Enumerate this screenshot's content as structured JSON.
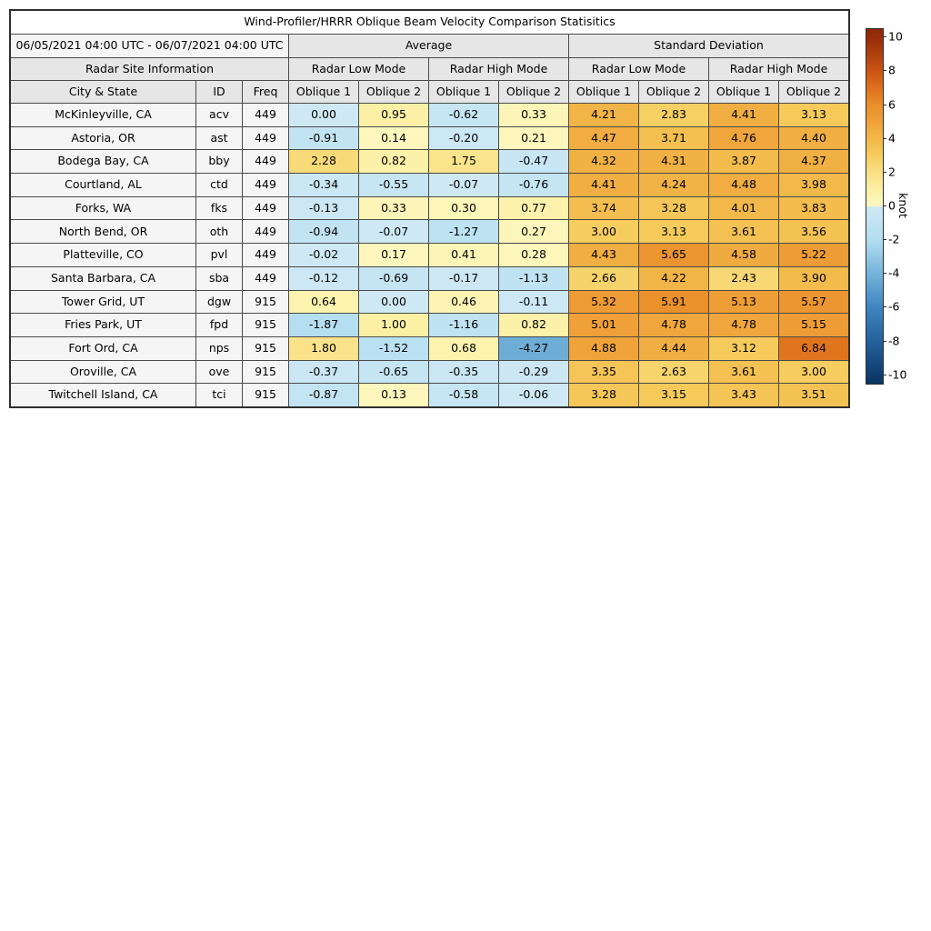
{
  "chart_data": {
    "type": "table",
    "title": "Wind-Profiler/HRRR Oblique Beam Velocity Comparison Statisitics",
    "period": "06/05/2021 04:00 UTC - 06/07/2021 04:00 UTC",
    "group_headers": {
      "average": "Average",
      "std_dev": "Standard Deviation"
    },
    "site_info_header": "Radar Site Information",
    "mode_headers": [
      "Radar Low Mode",
      "Radar High Mode",
      "Radar Low Mode",
      "Radar High Mode"
    ],
    "site_columns": [
      "City & State",
      "ID",
      "Freq"
    ],
    "oblique_header_pair": [
      "Oblique 1",
      "Oblique 2"
    ],
    "value_column_keys": [
      "avg_low_oblique1",
      "avg_low_oblique2",
      "avg_high_oblique1",
      "avg_high_oblique2",
      "std_low_oblique1",
      "std_low_oblique2",
      "std_high_oblique1",
      "std_high_oblique2"
    ],
    "rows": [
      {
        "city": "McKinleyville, CA",
        "id": "acv",
        "freq": "449",
        "values": [
          0.0,
          0.95,
          -0.62,
          0.33,
          4.21,
          2.83,
          4.41,
          3.13
        ]
      },
      {
        "city": "Astoria, OR",
        "id": "ast",
        "freq": "449",
        "values": [
          -0.91,
          0.14,
          -0.2,
          0.21,
          4.47,
          3.71,
          4.76,
          4.4
        ]
      },
      {
        "city": "Bodega Bay, CA",
        "id": "bby",
        "freq": "449",
        "values": [
          2.28,
          0.82,
          1.75,
          -0.47,
          4.32,
          4.31,
          3.87,
          4.37
        ]
      },
      {
        "city": "Courtland, AL",
        "id": "ctd",
        "freq": "449",
        "values": [
          -0.34,
          -0.55,
          -0.07,
          -0.76,
          4.41,
          4.24,
          4.48,
          3.98
        ]
      },
      {
        "city": "Forks, WA",
        "id": "fks",
        "freq": "449",
        "values": [
          -0.13,
          0.33,
          0.3,
          0.77,
          3.74,
          3.28,
          4.01,
          3.83
        ]
      },
      {
        "city": "North Bend, OR",
        "id": "oth",
        "freq": "449",
        "values": [
          -0.94,
          -0.07,
          -1.27,
          0.27,
          3.0,
          3.13,
          3.61,
          3.56
        ]
      },
      {
        "city": "Platteville, CO",
        "id": "pvl",
        "freq": "449",
        "values": [
          -0.02,
          0.17,
          0.41,
          0.28,
          4.43,
          5.65,
          4.58,
          5.22
        ]
      },
      {
        "city": "Santa Barbara, CA",
        "id": "sba",
        "freq": "449",
        "values": [
          -0.12,
          -0.69,
          -0.17,
          -1.13,
          2.66,
          4.22,
          2.43,
          3.9
        ]
      },
      {
        "city": "Tower Grid, UT",
        "id": "dgw",
        "freq": "915",
        "values": [
          0.64,
          0.0,
          0.46,
          -0.11,
          5.32,
          5.91,
          5.13,
          5.57
        ]
      },
      {
        "city": "Fries Park, UT",
        "id": "fpd",
        "freq": "915",
        "values": [
          -1.87,
          1.0,
          -1.16,
          0.82,
          5.01,
          4.78,
          4.78,
          5.15
        ]
      },
      {
        "city": "Fort Ord, CA",
        "id": "nps",
        "freq": "915",
        "values": [
          1.8,
          -1.52,
          0.68,
          -4.27,
          4.88,
          4.44,
          3.12,
          6.84
        ]
      },
      {
        "city": "Oroville, CA",
        "id": "ove",
        "freq": "915",
        "values": [
          -0.37,
          -0.65,
          -0.35,
          -0.29,
          3.35,
          2.63,
          3.61,
          3.0
        ]
      },
      {
        "city": "Twitchell Island, CA",
        "id": "tci",
        "freq": "915",
        "values": [
          -0.87,
          0.13,
          -0.58,
          -0.06,
          3.28,
          3.15,
          3.43,
          3.51
        ]
      }
    ],
    "colorbar": {
      "label": "knot",
      "ticks": [
        10,
        8,
        6,
        4,
        2,
        0,
        -2,
        -4,
        -6,
        -8,
        -10
      ],
      "vmin": -10.5,
      "vmax": 10.5,
      "colormap_anchors": [
        [
          -10.5,
          "#0a3663"
        ],
        [
          -10,
          "#0e3d6d"
        ],
        [
          -8,
          "#24629c"
        ],
        [
          -6,
          "#3e85bf"
        ],
        [
          -4,
          "#74b3da"
        ],
        [
          -2,
          "#b3def0"
        ],
        [
          -0.001,
          "#cfe9f4"
        ],
        [
          0.001,
          "#fdf8c2"
        ],
        [
          1,
          "#fcf0a4"
        ],
        [
          2,
          "#f9e084"
        ],
        [
          3,
          "#f6cd5e"
        ],
        [
          4,
          "#f2b94a"
        ],
        [
          5,
          "#efa038"
        ],
        [
          6,
          "#e98f2b"
        ],
        [
          7,
          "#df701c"
        ],
        [
          8,
          "#cb5414"
        ],
        [
          10,
          "#962d0a"
        ],
        [
          10.5,
          "#8e2808"
        ]
      ]
    }
  },
  "style": {
    "grid_line": "#4a4a4a",
    "header_bg": "#e6e6e6",
    "site_bg": "#f5f5f5",
    "title_bg": "#ffffff",
    "text": "#000000"
  }
}
